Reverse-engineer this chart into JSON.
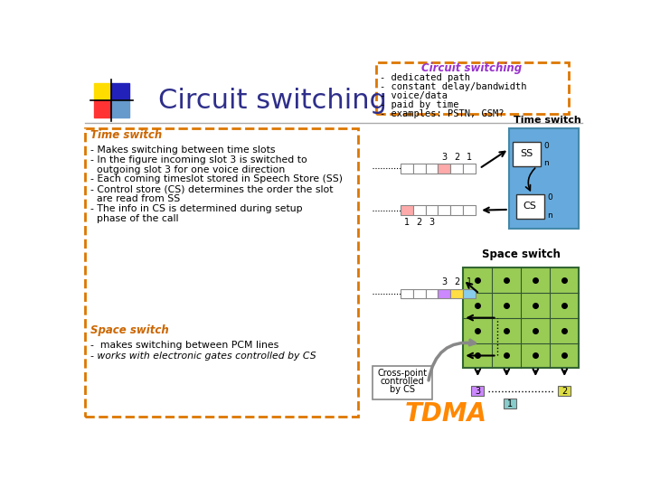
{
  "bg_color": "#ffffff",
  "title_text": "Circuit switching",
  "title_color": "#2e2e8b",
  "title_fontsize": 22,
  "header_box_title": "Circuit switching",
  "header_box_color": "#dd7700",
  "header_box_title_color": "#9933cc",
  "header_bullets": [
    "- dedicated path",
    "- constant delay/bandwidth",
    "- voice/data",
    "- paid by time",
    "- examples: PSTN, GSM?"
  ],
  "left_box_color": "#dd7700",
  "time_switch_label": "Time switch",
  "time_switch_color": "#cc6600",
  "space_switch_label": "Space switch",
  "space_switch_color": "#cc6600",
  "left_bullets": [
    "- Makes switching between time slots",
    "- In the figure incoming slot 3 is switched to",
    "  outgoing slot 3 for one voice direction",
    "- Each coming timeslot stored in Speech Store (SS)",
    "- Control store (CS) determines the order the slot",
    "  are read from SS",
    "- The info in CS is determined during setup",
    "  phase of the call"
  ],
  "left_bullets2": [
    "-  makes switching between PCM lines",
    "- works with electronic gates controlled by CS"
  ],
  "logo_colors": [
    "#ffdd00",
    "#ff3333",
    "#2222bb",
    "#6699cc"
  ],
  "tdma_color": "#ff8800",
  "tdma_fontsize": 20,
  "time_switch_box_color": "#66aadd",
  "space_switch_box_color": "#99cc55",
  "bottom_label": "TDMA"
}
